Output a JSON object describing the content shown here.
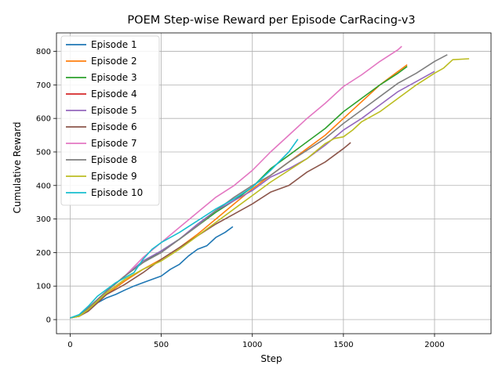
{
  "chart_data": {
    "type": "line",
    "title": "POEM Step-wise Reward per Episode CarRacing-v3",
    "xlabel": "Step",
    "ylabel": "Cumulative Reward",
    "xlim": [
      -75,
      2310
    ],
    "ylim": [
      -42,
      855
    ],
    "xticks": [
      0,
      500,
      1000,
      1500,
      2000
    ],
    "yticks": [
      0,
      100,
      200,
      300,
      400,
      500,
      600,
      700,
      800
    ],
    "grid": true,
    "legend": "upper-left",
    "series": [
      {
        "name": "Episode 1",
        "color": "#1f77b4",
        "x": [
          0,
          50,
          100,
          150,
          200,
          250,
          300,
          350,
          400,
          450,
          500,
          550,
          600,
          650,
          700,
          750,
          800,
          850,
          893
        ],
        "y": [
          5,
          10,
          28,
          50,
          65,
          75,
          88,
          100,
          110,
          120,
          130,
          150,
          165,
          190,
          210,
          220,
          245,
          260,
          277
        ]
      },
      {
        "name": "Episode 2",
        "color": "#ff7f0e",
        "x": [
          0,
          50,
          100,
          150,
          200,
          300,
          400,
          500,
          600,
          700,
          800,
          900,
          1000,
          1100,
          1200,
          1300,
          1400,
          1500,
          1600,
          1700,
          1800,
          1850
        ],
        "y": [
          5,
          10,
          28,
          55,
          75,
          115,
          150,
          180,
          215,
          255,
          300,
          345,
          390,
          430,
          470,
          510,
          550,
          600,
          650,
          700,
          740,
          760
        ]
      },
      {
        "name": "Episode 3",
        "color": "#2ca02c",
        "x": [
          0,
          50,
          100,
          150,
          200,
          300,
          400,
          500,
          600,
          700,
          800,
          900,
          1000,
          1100,
          1200,
          1300,
          1400,
          1500,
          1600,
          1700,
          1800,
          1850
        ],
        "y": [
          5,
          12,
          35,
          60,
          85,
          130,
          170,
          205,
          240,
          280,
          320,
          355,
          395,
          450,
          490,
          530,
          570,
          620,
          660,
          700,
          735,
          755
        ]
      },
      {
        "name": "Episode 4",
        "color": "#d62728",
        "x": [
          0,
          30,
          60,
          90,
          120,
          150
        ],
        "y": [
          5,
          8,
          15,
          28,
          42,
          55
        ]
      },
      {
        "name": "Episode 5",
        "color": "#9467bd",
        "x": [
          0,
          50,
          100,
          150,
          200,
          300,
          400,
          500,
          600,
          700,
          800,
          900,
          1000,
          1100,
          1200,
          1300,
          1400,
          1500,
          1600,
          1700,
          1800,
          1900,
          2000
        ],
        "y": [
          5,
          12,
          35,
          60,
          85,
          130,
          175,
          205,
          240,
          285,
          325,
          355,
          385,
          425,
          450,
          480,
          520,
          565,
          600,
          640,
          680,
          710,
          740
        ]
      },
      {
        "name": "Episode 6",
        "color": "#8c564b",
        "x": [
          0,
          50,
          100,
          150,
          200,
          300,
          400,
          500,
          600,
          700,
          800,
          900,
          1000,
          1100,
          1200,
          1300,
          1400,
          1500,
          1540
        ],
        "y": [
          5,
          10,
          25,
          50,
          75,
          105,
          140,
          180,
          215,
          250,
          285,
          315,
          345,
          380,
          400,
          440,
          470,
          510,
          528
        ]
      },
      {
        "name": "Episode 7",
        "color": "#e377c2",
        "x": [
          0,
          50,
          100,
          150,
          200,
          300,
          400,
          500,
          600,
          700,
          800,
          900,
          1000,
          1100,
          1200,
          1300,
          1400,
          1500,
          1600,
          1700,
          1800,
          1820
        ],
        "y": [
          5,
          12,
          35,
          60,
          85,
          130,
          185,
          230,
          275,
          320,
          365,
          400,
          445,
          500,
          550,
          600,
          645,
          695,
          730,
          770,
          805,
          815
        ]
      },
      {
        "name": "Episode 8",
        "color": "#7f7f7f",
        "x": [
          0,
          50,
          100,
          150,
          200,
          300,
          400,
          500,
          600,
          700,
          800,
          900,
          1000,
          1100,
          1200,
          1300,
          1400,
          1500,
          1600,
          1700,
          1800,
          1900,
          2000,
          2070
        ],
        "y": [
          5,
          12,
          35,
          60,
          85,
          130,
          170,
          200,
          240,
          280,
          325,
          365,
          400,
          430,
          470,
          505,
          540,
          585,
          625,
          665,
          705,
          735,
          770,
          790
        ]
      },
      {
        "name": "Episode 9",
        "color": "#bcbd22",
        "x": [
          0,
          50,
          100,
          150,
          200,
          300,
          400,
          500,
          600,
          700,
          800,
          900,
          1000,
          1100,
          1200,
          1300,
          1400,
          1450,
          1500,
          1550,
          1600,
          1700,
          1800,
          1900,
          2000,
          2050,
          2100,
          2190
        ],
        "y": [
          5,
          10,
          30,
          55,
          80,
          120,
          150,
          175,
          210,
          250,
          290,
          330,
          370,
          410,
          445,
          480,
          525,
          540,
          545,
          565,
          590,
          620,
          660,
          700,
          735,
          750,
          775,
          778
        ]
      },
      {
        "name": "Episode 10",
        "color": "#17becf",
        "x": [
          0,
          50,
          100,
          150,
          200,
          250,
          300,
          350,
          400,
          450,
          500,
          600,
          700,
          800,
          900,
          1000,
          1100,
          1200,
          1250
        ],
        "y": [
          5,
          15,
          40,
          70,
          90,
          110,
          125,
          140,
          180,
          210,
          230,
          260,
          295,
          330,
          360,
          395,
          445,
          500,
          538
        ]
      }
    ]
  }
}
